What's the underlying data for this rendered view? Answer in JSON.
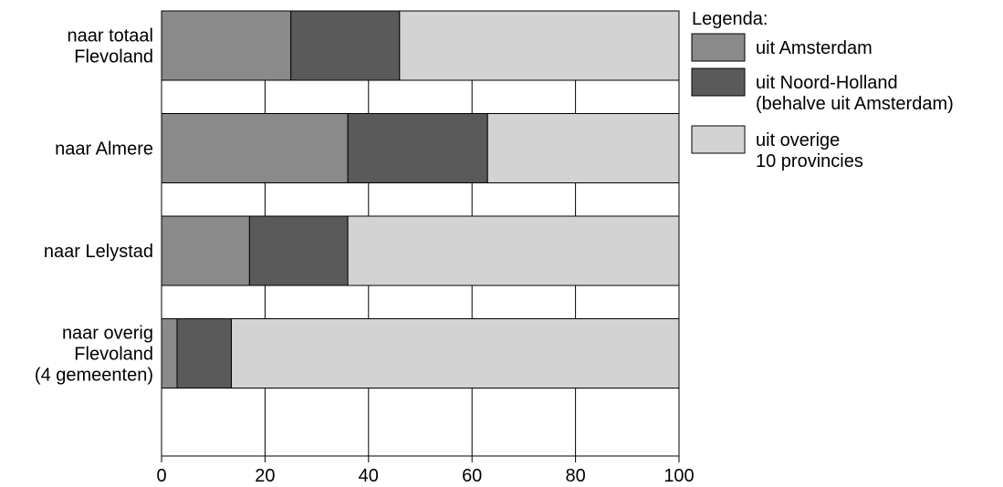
{
  "chart_data": {
    "type": "bar",
    "orientation": "horizontal",
    "stacked": true,
    "categories": [
      [
        "naar totaal",
        "Flevoland"
      ],
      [
        "naar Almere"
      ],
      [
        "naar Lelystad"
      ],
      [
        "naar overig",
        "Flevoland",
        "(4 gemeenten)"
      ]
    ],
    "series": [
      {
        "name": [
          "uit Amsterdam"
        ],
        "color": "#8a8a8a",
        "values": [
          25,
          36,
          17,
          3
        ]
      },
      {
        "name": [
          "uit Noord-Holland",
          "(behalve uit Amsterdam)"
        ],
        "color": "#5a5a5a",
        "values": [
          21,
          27,
          19,
          10.5
        ]
      },
      {
        "name": [
          "uit overige",
          "10 provincies"
        ],
        "color": "#d3d3d3",
        "values": [
          54,
          37,
          64,
          86.5
        ]
      }
    ],
    "xlim": [
      0,
      100
    ],
    "x_ticks": [
      "0",
      "20",
      "40",
      "60",
      "80",
      "100"
    ],
    "grid": true,
    "legend": {
      "title": "Legenda:",
      "position": "right"
    }
  }
}
